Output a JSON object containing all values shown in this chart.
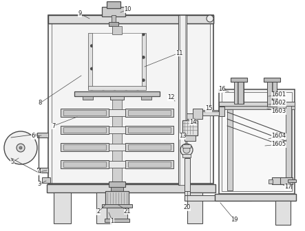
{
  "bg_color": "#ffffff",
  "line_color": "#4a4a4a",
  "label_fontsize": 6.0,
  "label_color": "#222222",
  "labels_data": {
    "1": [
      163,
      321,
      158,
      309
    ],
    "2": [
      143,
      308,
      153,
      298
    ],
    "3": [
      57,
      268,
      67,
      263
    ],
    "4": [
      57,
      250,
      68,
      248
    ],
    "5": [
      18,
      236,
      27,
      230
    ],
    "6": [
      48,
      198,
      60,
      197
    ],
    "7": [
      78,
      183,
      112,
      170
    ],
    "8": [
      58,
      150,
      118,
      110
    ],
    "9": [
      116,
      20,
      130,
      27
    ],
    "10": [
      185,
      14,
      175,
      18
    ],
    "11": [
      260,
      77,
      210,
      97
    ],
    "12": [
      248,
      142,
      254,
      147
    ],
    "13": [
      265,
      198,
      271,
      195
    ],
    "14": [
      280,
      177,
      283,
      172
    ],
    "15": [
      303,
      158,
      298,
      163
    ],
    "16": [
      322,
      130,
      332,
      133
    ],
    "17": [
      418,
      272,
      409,
      268
    ],
    "19": [
      340,
      319,
      320,
      295
    ],
    "20": [
      272,
      302,
      272,
      278
    ],
    "21": [
      185,
      307,
      172,
      298
    ],
    "1601": [
      405,
      138,
      390,
      140
    ],
    "1602": [
      405,
      150,
      390,
      152
    ],
    "1603": [
      405,
      162,
      388,
      158
    ],
    "1604": [
      405,
      198,
      390,
      202
    ],
    "1605": [
      405,
      210,
      385,
      212
    ]
  }
}
